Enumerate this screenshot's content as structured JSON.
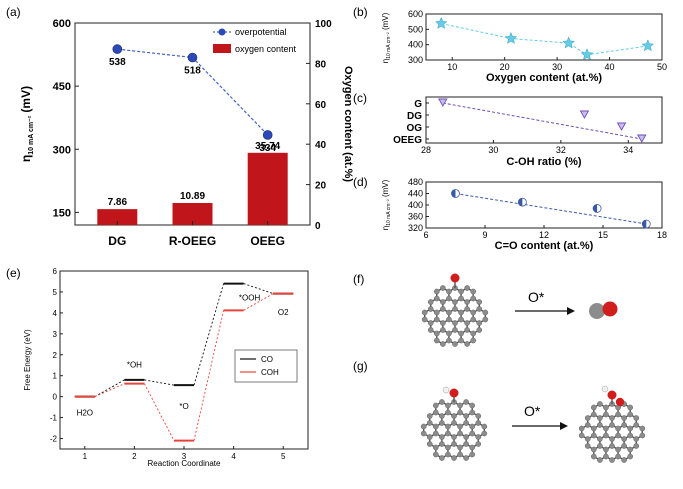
{
  "panel_labels": {
    "a": "(a)",
    "b": "(b)",
    "c": "(c)",
    "d": "(d)",
    "e": "(e)",
    "f": "(f)",
    "g": "(g)"
  },
  "colors": {
    "bar": "#c0161b",
    "point_a": "#2d49b8",
    "line_a": "#4563c9",
    "point_b": "#66cce6",
    "point_c": "#6d4fb5",
    "point_d": "#3a5aa8",
    "co_line": "#111111",
    "coh_line": "#e8453a",
    "atom_c": "#8c8c8c",
    "atom_o": "#d11d1d",
    "atom_h": "#f1f1f1"
  },
  "chart_data": [
    {
      "id": "a",
      "type": "bar+line",
      "categories": [
        "DG",
        "R-OEEG",
        "OEEG"
      ],
      "series": [
        {
          "name": "overpotential",
          "kind": "line",
          "axis": "left",
          "values": [
            538,
            518,
            334
          ],
          "labels": [
            "538",
            "518",
            "334"
          ]
        },
        {
          "name": "oxygen content",
          "kind": "bar",
          "axis": "right",
          "values": [
            7.86,
            10.89,
            35.74
          ],
          "labels": [
            "7.86",
            "10.89",
            "35.74"
          ]
        }
      ],
      "ylabel_main": "η",
      "ylabel_sub": "10 mA cm⁻²",
      "ylabel_unit": " (mV)",
      "y2label": "Oxygen content (at.%)",
      "ylim": [
        120,
        600
      ],
      "y2lim": [
        0,
        100
      ],
      "yticks": [
        "150",
        "300",
        "450",
        "600"
      ],
      "y2ticks": [
        "0",
        "20",
        "40",
        "60",
        "80",
        "100"
      ]
    },
    {
      "id": "b",
      "type": "scatter",
      "x": [
        7.9,
        21.2,
        32.2,
        35.7,
        47.3
      ],
      "y": [
        538,
        440,
        410,
        334,
        392
      ],
      "xlabel": "Oxygen content (at.%)",
      "ylabel_main": "η",
      "ylabel_sub": "10 mA cm⁻²",
      "ylabel_unit": " (mV)",
      "xlim": [
        5,
        50
      ],
      "ylim": [
        300,
        600
      ],
      "xticks": [
        "10",
        "20",
        "30",
        "40",
        "50"
      ],
      "yticks": [
        "300",
        "400",
        "500",
        "600"
      ]
    },
    {
      "id": "c",
      "type": "scatter",
      "x": [
        28.5,
        32.7,
        33.8,
        34.4
      ],
      "y": [
        3,
        2,
        1,
        0
      ],
      "xlabel": "C-OH ratio (%)",
      "ycategories": [
        "OEEG",
        "OG",
        "DG",
        "G"
      ],
      "xlim": [
        28,
        35
      ],
      "xticks": [
        "28",
        "30",
        "32",
        "34"
      ]
    },
    {
      "id": "d",
      "type": "scatter",
      "x": [
        7.5,
        10.9,
        14.7,
        17.2
      ],
      "y": [
        440,
        410,
        388,
        334
      ],
      "xlabel": "C=O content (at.%)",
      "ylabel_main": "η",
      "ylabel_sub": "10 mA cm⁻²",
      "ylabel_unit": " (mV)",
      "xlim": [
        6,
        18
      ],
      "ylim": [
        320,
        480
      ],
      "xticks": [
        "6",
        "9",
        "12",
        "15",
        "18"
      ],
      "yticks": [
        "320",
        "360",
        "400",
        "440",
        "480"
      ]
    },
    {
      "id": "e",
      "type": "line",
      "x": [
        1,
        2,
        3,
        4,
        5
      ],
      "series": [
        {
          "name": "CO",
          "values": [
            0,
            0.8,
            0.55,
            5.4,
            4.92
          ]
        },
        {
          "name": "COH",
          "values": [
            0,
            0.62,
            -2.1,
            4.12,
            4.92
          ]
        }
      ],
      "annotations": [
        "H2O",
        "*OH",
        "*O",
        "*OOH",
        "O2"
      ],
      "xlabel": "Reaction Coordinate",
      "ylabel": "Free Energy (eV)",
      "xlim": [
        0.5,
        5.5
      ],
      "ylim": [
        -2.5,
        6
      ],
      "xticks": [
        "1",
        "2",
        "3",
        "4",
        "5"
      ],
      "yticks": [
        "-2",
        "-1",
        "0",
        "1",
        "2",
        "3",
        "4",
        "5",
        "6"
      ]
    }
  ],
  "schemes": {
    "f": {
      "reagent": "O*"
    },
    "g": {
      "reagent": "O*"
    }
  }
}
